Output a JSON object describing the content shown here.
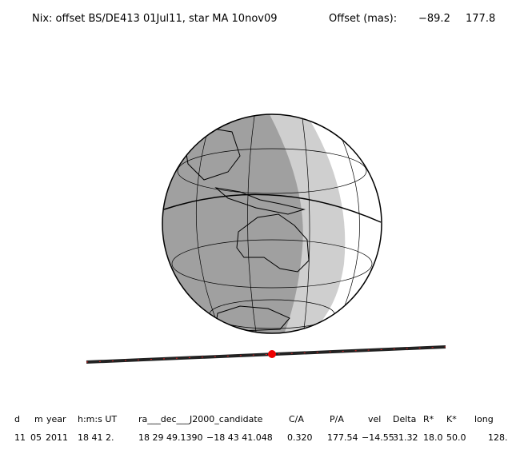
{
  "header": {
    "title": "Nix: offset BS/DE413 01Jul11, star MA 10nov09",
    "offset_label": "Offset (mas):",
    "offset_values": [
      "−89.2",
      "177.8"
    ]
  },
  "table": {
    "columns": [
      "d",
      "m",
      "year",
      "h:m:s UT",
      "ra___dec___J2000_candidate",
      "C/A",
      "P/A",
      "vel",
      "Delta",
      "R*",
      "K*",
      "long"
    ],
    "rows": [
      [
        "11",
        "05",
        "2011",
        "18 41 2.",
        "18 29 49.1390",
        "−18 43 41.048",
        "0.320",
        "177.54",
        "−14.55",
        "31.32",
        "18.0",
        "50.0",
        "128."
      ]
    ]
  }
}
